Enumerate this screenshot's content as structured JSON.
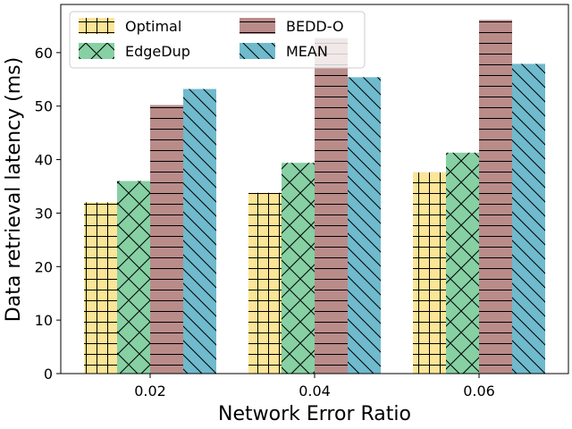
{
  "chart_data": {
    "type": "bar",
    "title": "",
    "xlabel": "Network Error Ratio",
    "ylabel": "Data retrieval latency (ms)",
    "categories": [
      "0.02",
      "0.04",
      "0.06"
    ],
    "ylim": [
      0,
      69
    ],
    "yticks": [
      0,
      10,
      20,
      30,
      40,
      50,
      60
    ],
    "grid": false,
    "legend_position": "top-left",
    "series": [
      {
        "name": "Optimal",
        "values": [
          32.0,
          33.8,
          37.6
        ],
        "color": "#fce597",
        "hatch": "grid"
      },
      {
        "name": "EdgeDup",
        "values": [
          36.0,
          39.4,
          41.3
        ],
        "color": "#86d0a4",
        "hatch": "cross"
      },
      {
        "name": "BEDD-O",
        "values": [
          50.2,
          62.7,
          66.1
        ],
        "color": "#b98c8a",
        "hatch": "horizontal"
      },
      {
        "name": "MEAN",
        "values": [
          53.2,
          55.4,
          57.9
        ],
        "color": "#6fbacd",
        "hatch": "backslash"
      }
    ]
  }
}
